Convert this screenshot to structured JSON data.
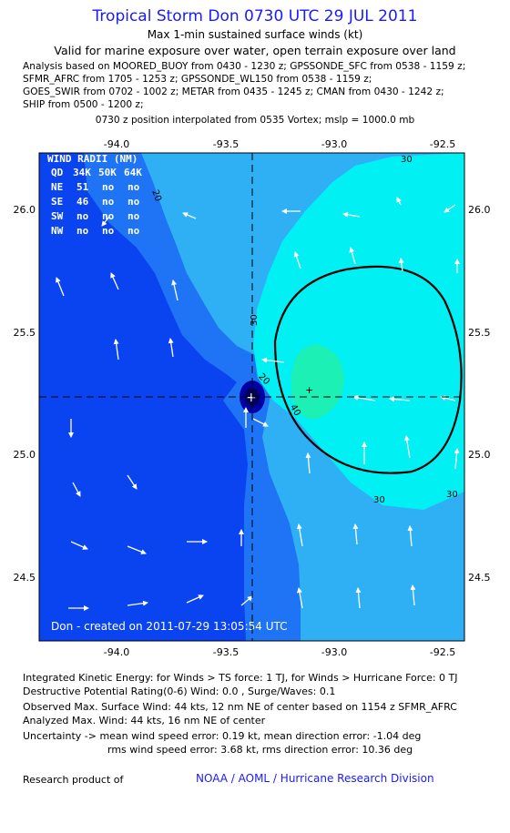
{
  "header": {
    "title": "Tropical Storm Don 0730 UTC 29 JUL 2011",
    "subtitle": "Max 1-min sustained surface winds (kt)",
    "valid": "Valid for marine exposure over water, open terrain exposure over land"
  },
  "analysis_lines": [
    "Analysis based on MOORED_BUOY from 0430 - 1230 z; GPSSONDE_SFC from 0538 - 1159 z;",
    "SFMR_AFRC from 1705 - 1253 z; GPSSONDE_WL150 from 0538 - 1159 z;",
    "GOES_SWIR from 0702 - 1002 z; METAR from 0435 - 1245 z; CMAN from 0430 - 1242 z;",
    "SHIP from 0500 - 1200 z;"
  ],
  "vortex_note": "0730 z position interpolated from 0535 Vortex; mslp = 1000.0 mb",
  "map": {
    "x_ticks": [
      "-94.0",
      "-93.5",
      "-93.0",
      "-92.5"
    ],
    "y_ticks": [
      "26.0",
      "25.5",
      "25.0",
      "24.5"
    ],
    "contour_labels": [
      "30",
      "30",
      "30",
      "30",
      "20",
      "20",
      "40"
    ],
    "created": "Don - created on 2011-07-29 13:05:54 UTC",
    "colors": {
      "lt10": "#0a44f0",
      "c10_20": "#1f74f5",
      "c20_30": "#2fb0f5",
      "c30_40": "#00f0f4",
      "gt40": "#1cf0b4",
      "center": "#0000a0"
    },
    "wind_radii": {
      "title": "WIND RADII (NM)",
      "header": [
        "QD",
        "34K",
        "50K",
        "64K"
      ],
      "rows": [
        [
          "NE",
          "51",
          "no",
          "no"
        ],
        [
          "SE",
          "46",
          "no",
          "no"
        ],
        [
          "SW",
          "no",
          "no",
          "no"
        ],
        [
          "NW",
          "no",
          "no",
          "no"
        ]
      ]
    }
  },
  "footer": {
    "ike": "Integrated Kinetic Energy:  for Winds > TS force: 1 TJ,  for Winds > Hurricane Force: 0 TJ",
    "dpr": "Destructive Potential Rating(0-6)   Wind: 0.0 , Surge/Waves: 0.1",
    "obs": "Observed Max. Surface Wind: 44 kts, 12 nm NE of center based on 1154 z SFMR_AFRC",
    "analyzed": "Analyzed Max. Wind: 44 kts, 16 nm NE of center",
    "uncert1": "Uncertainty -> mean wind speed error: 0.19 kt,   mean direction error:  -1.04 deg",
    "uncert2": "rms wind speed error: 3.68 kt,   rms direction error: 10.36 deg",
    "research": "Research product of",
    "credit": "NOAA / AOML / Hurricane Research Division"
  }
}
